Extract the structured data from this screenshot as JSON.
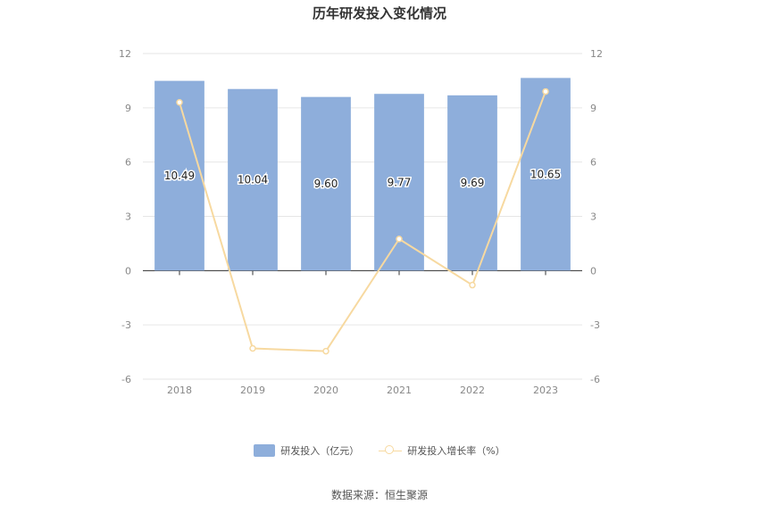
{
  "chart_data": {
    "type": "bar",
    "title": "历年研发投入变化情况",
    "categories": [
      "2018",
      "2019",
      "2020",
      "2021",
      "2022",
      "2023"
    ],
    "series": [
      {
        "name": "研发投入（亿元）",
        "type": "bar",
        "axis": "left",
        "values": [
          10.49,
          10.04,
          9.6,
          9.77,
          9.69,
          10.65
        ],
        "data_labels": [
          "10.49",
          "10.04",
          "9.60",
          "9.77",
          "9.69",
          "10.65"
        ]
      },
      {
        "name": "研发投入增长率（%）",
        "type": "line",
        "axis": "right",
        "values": [
          9.3,
          -4.3,
          -4.45,
          1.75,
          -0.8,
          9.9
        ]
      }
    ],
    "ylim_left": [
      -6,
      12
    ],
    "ylim_right": [
      -6,
      12
    ],
    "yticks": [
      "12",
      "9",
      "6",
      "3",
      "0",
      "-3",
      "-6"
    ],
    "legend_position": "bottom",
    "grid": true,
    "colors": {
      "bar": "#8eaedb",
      "line": "#f7d9a0",
      "grid": "#e6e6e6",
      "axis": "#333333"
    }
  },
  "source": "数据来源：恒生聚源"
}
